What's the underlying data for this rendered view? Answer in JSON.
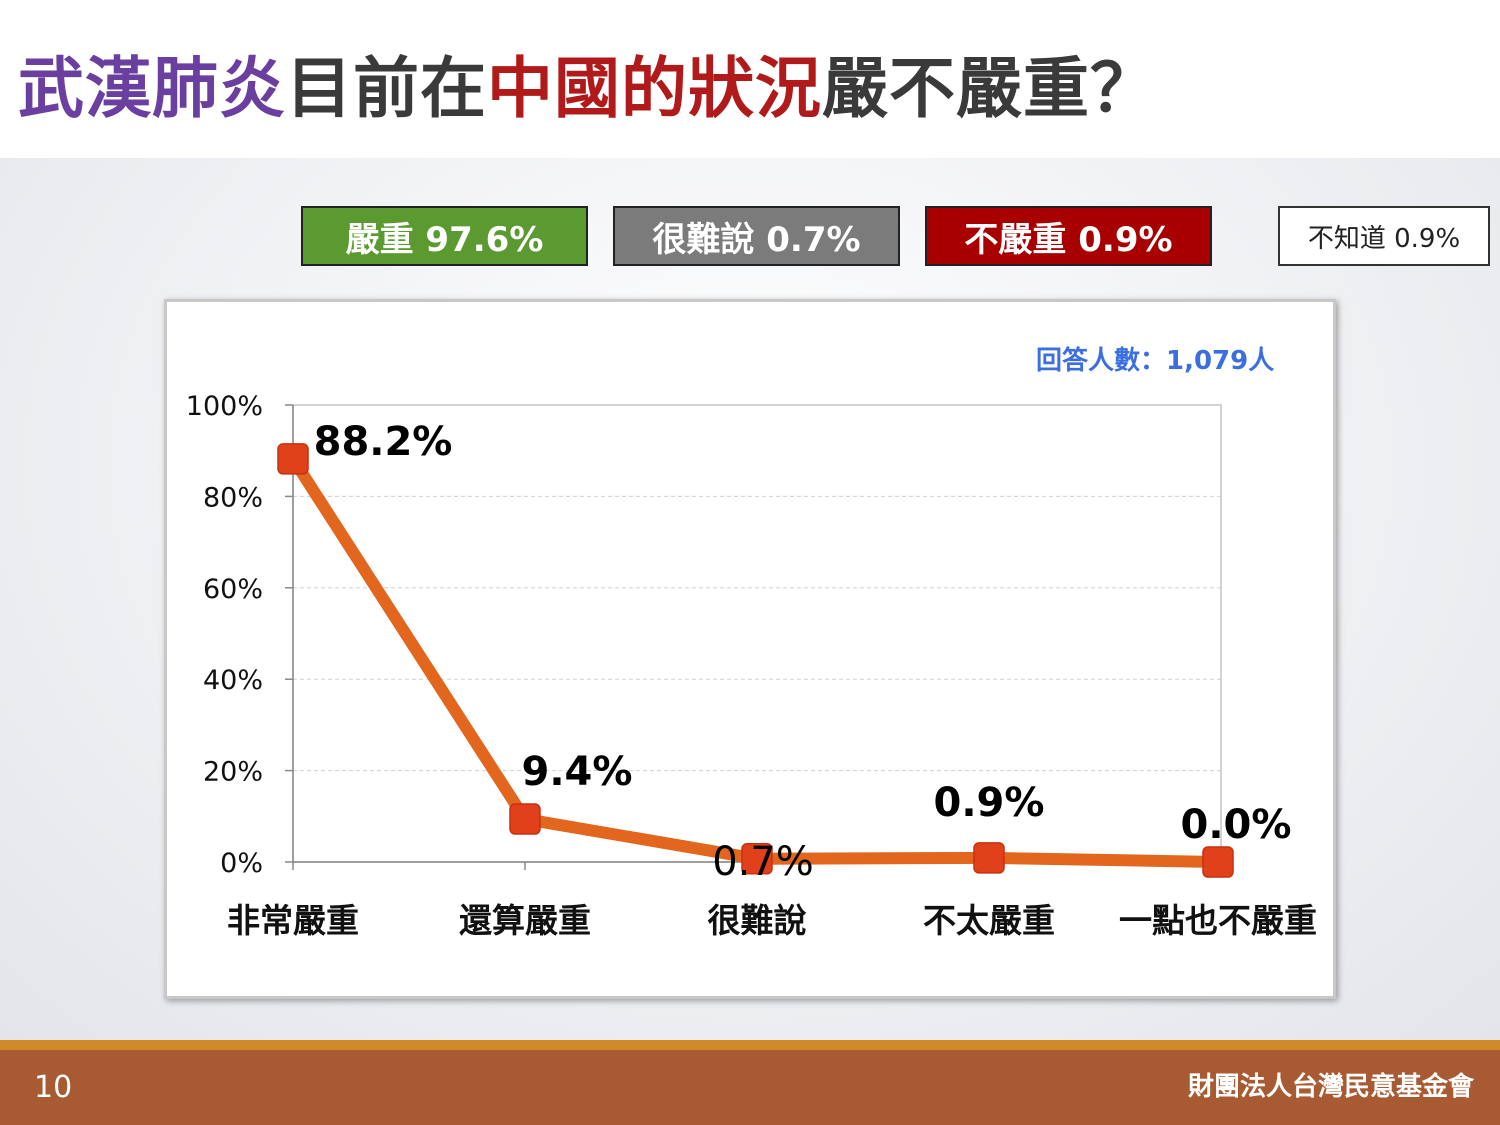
{
  "title": {
    "part1": "武漢肺炎",
    "part2": "目前在",
    "part3": "中國的狀況",
    "part4": "嚴不嚴重？"
  },
  "summary": {
    "serious": "嚴重 97.6%",
    "hard_to_say": "很難說 0.7%",
    "not_serious": "不嚴重 0.9%",
    "unknown": "不知道 0.9%"
  },
  "respondents": "回答人數：1,079人",
  "footer": {
    "page": "10",
    "org": "財團法人台灣民意基金會"
  },
  "colors": {
    "line": "#e2661d",
    "marker": "#e0401a",
    "serious": "#5a9a30",
    "hard_to_say": "#7b7b7b",
    "not_serious": "#a80000"
  },
  "chart_data": {
    "type": "line",
    "categories": [
      "非常嚴重",
      "還算嚴重",
      "很難說",
      "不太嚴重",
      "一點也不嚴重"
    ],
    "values": [
      88.2,
      9.4,
      0.7,
      0.9,
      0.0
    ],
    "data_labels": [
      "88.2%",
      "9.4%",
      "0.7%",
      "0.9%",
      "0.0%"
    ],
    "y_ticks": [
      "0%",
      "20%",
      "40%",
      "60%",
      "80%",
      "100%"
    ],
    "ylim": [
      0,
      100
    ],
    "grid": true,
    "legend": "none"
  }
}
